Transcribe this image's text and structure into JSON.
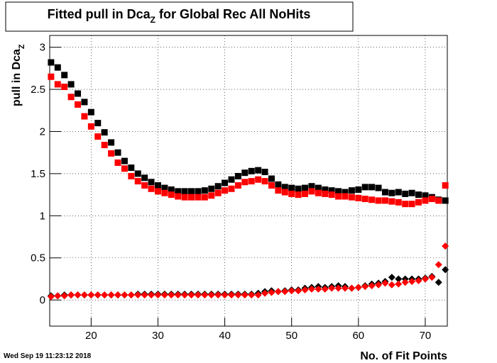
{
  "chart_data": {
    "type": "scatter",
    "title": [
      "Fitted pull in Dca",
      "Z",
      " for Global Rec All NoHits"
    ],
    "ylabel": [
      "pull in Dca",
      "Z"
    ],
    "xlabel": "No. of Fit Points",
    "date": "Wed Sep 19 11:23:12 2018",
    "x": [
      14,
      15,
      16,
      17,
      18,
      19,
      20,
      21,
      22,
      23,
      24,
      25,
      26,
      27,
      28,
      29,
      30,
      31,
      32,
      33,
      34,
      35,
      36,
      37,
      38,
      39,
      40,
      41,
      42,
      43,
      44,
      45,
      46,
      47,
      48,
      49,
      50,
      51,
      52,
      53,
      54,
      55,
      56,
      57,
      58,
      59,
      60,
      61,
      62,
      63,
      64,
      65,
      66,
      67,
      68,
      69,
      70,
      71,
      72,
      73
    ],
    "series": [
      {
        "color": "#000000",
        "marker": "square",
        "values": [
          2.82,
          2.76,
          2.67,
          2.56,
          2.45,
          2.35,
          2.23,
          2.1,
          1.99,
          1.87,
          1.75,
          1.65,
          1.57,
          1.5,
          1.45,
          1.4,
          1.36,
          1.33,
          1.31,
          1.29,
          1.29,
          1.29,
          1.29,
          1.3,
          1.32,
          1.35,
          1.39,
          1.43,
          1.47,
          1.51,
          1.53,
          1.54,
          1.52,
          1.44,
          1.37,
          1.34,
          1.33,
          1.32,
          1.33,
          1.35,
          1.33,
          1.31,
          1.3,
          1.29,
          1.28,
          1.3,
          1.31,
          1.34,
          1.34,
          1.33,
          1.28,
          1.27,
          1.28,
          1.26,
          1.27,
          1.25,
          1.24,
          1.22,
          1.19,
          1.18
        ]
      },
      {
        "color": "#ff0000",
        "marker": "square",
        "values": [
          2.65,
          2.56,
          2.53,
          2.41,
          2.32,
          2.18,
          2.06,
          1.94,
          1.84,
          1.74,
          1.63,
          1.56,
          1.47,
          1.41,
          1.36,
          1.32,
          1.29,
          1.27,
          1.25,
          1.23,
          1.22,
          1.22,
          1.22,
          1.22,
          1.24,
          1.27,
          1.3,
          1.32,
          1.36,
          1.4,
          1.41,
          1.43,
          1.41,
          1.36,
          1.3,
          1.28,
          1.26,
          1.25,
          1.26,
          1.29,
          1.27,
          1.26,
          1.25,
          1.23,
          1.23,
          1.22,
          1.21,
          1.2,
          1.19,
          1.18,
          1.18,
          1.17,
          1.16,
          1.14,
          1.14,
          1.16,
          1.18,
          1.2,
          1.18,
          1.36
        ]
      },
      {
        "color": "#000000",
        "marker": "diamond",
        "values": [
          0.05,
          0.05,
          0.06,
          0.06,
          0.06,
          0.06,
          0.06,
          0.06,
          0.06,
          0.06,
          0.06,
          0.06,
          0.06,
          0.07,
          0.07,
          0.07,
          0.07,
          0.07,
          0.07,
          0.07,
          0.07,
          0.07,
          0.07,
          0.07,
          0.07,
          0.07,
          0.07,
          0.07,
          0.07,
          0.07,
          0.07,
          0.08,
          0.1,
          0.11,
          0.1,
          0.11,
          0.12,
          0.12,
          0.14,
          0.15,
          0.16,
          0.15,
          0.16,
          0.17,
          0.16,
          0.14,
          0.15,
          0.17,
          0.19,
          0.2,
          0.22,
          0.27,
          0.25,
          0.25,
          0.25,
          0.25,
          0.26,
          0.28,
          0.21,
          0.36
        ]
      },
      {
        "color": "#ff0000",
        "marker": "diamond",
        "values": [
          0.04,
          0.05,
          0.05,
          0.06,
          0.06,
          0.06,
          0.06,
          0.06,
          0.06,
          0.06,
          0.06,
          0.06,
          0.06,
          0.06,
          0.06,
          0.06,
          0.06,
          0.06,
          0.06,
          0.06,
          0.06,
          0.06,
          0.06,
          0.06,
          0.06,
          0.06,
          0.06,
          0.06,
          0.06,
          0.06,
          0.06,
          0.06,
          0.08,
          0.09,
          0.1,
          0.1,
          0.11,
          0.11,
          0.12,
          0.13,
          0.13,
          0.13,
          0.14,
          0.14,
          0.14,
          0.14,
          0.15,
          0.16,
          0.17,
          0.18,
          0.2,
          0.18,
          0.19,
          0.21,
          0.22,
          0.23,
          0.25,
          0.27,
          0.42,
          0.64
        ]
      }
    ],
    "xlim": [
      13.8,
      73.3
    ],
    "ylim": [
      -0.31,
      3.14
    ],
    "xticks": [
      20,
      30,
      40,
      50,
      60,
      70
    ],
    "yticks": [
      0,
      0.5,
      1,
      1.5,
      2,
      2.5,
      3
    ],
    "grid": true
  }
}
